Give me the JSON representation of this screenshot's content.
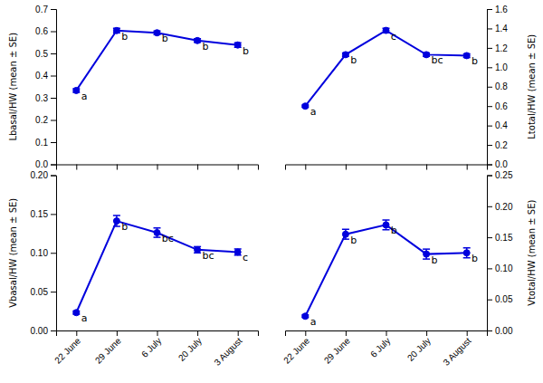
{
  "chart_data": [
    {
      "type": "line",
      "ylabel": "Lbasal/HW (mean ± SE)",
      "categories": [
        "22 June",
        "29 June",
        "6 July",
        "20 July",
        "3 August"
      ],
      "values": [
        0.333,
        0.603,
        0.593,
        0.558,
        0.538
      ],
      "errors": [
        0.008,
        0.01,
        0.008,
        0.008,
        0.01
      ],
      "letters": [
        "a",
        "b",
        "b",
        "b",
        "b"
      ],
      "ylim": [
        0.0,
        0.7
      ],
      "yticks": [
        {
          "value": 0.0,
          "label": "0.0"
        },
        0.1,
        0.2,
        0.3,
        0.4,
        0.5,
        0.6,
        0.7
      ],
      "color": "#0000DD",
      "marker": "circle",
      "grid": false,
      "tick_labels": "y"
    },
    {
      "type": "line",
      "ylabel": "Ltotal/HW (mean ± SE)",
      "categories": [
        "22 June",
        "29 June",
        "6 July",
        "20 July",
        "3 August"
      ],
      "values": [
        0.6,
        1.13,
        1.38,
        1.13,
        1.12
      ],
      "errors": [
        0.012,
        0.018,
        0.022,
        0.018,
        0.018
      ],
      "letters": [
        "a",
        "b",
        "c",
        "bc",
        "b"
      ],
      "ylim": [
        0.0,
        1.6
      ],
      "yticks": [
        {
          "value": 0.0,
          "label": "0.0"
        },
        0.2,
        0.4,
        0.6,
        0.8,
        {
          "value": 1.0,
          "label": "1.0"
        },
        1.2,
        1.4,
        1.6
      ],
      "color": "#0000DD",
      "marker": "circle",
      "grid": false,
      "tick_labels": "y"
    },
    {
      "type": "line",
      "ylabel": "Vbasal/HW (mean ± SE)",
      "categories": [
        "22 June",
        "29 June",
        "6 July",
        "20 July",
        "3 August"
      ],
      "values": [
        0.023,
        0.141,
        0.126,
        0.104,
        0.101
      ],
      "errors": [
        0.002,
        0.007,
        0.006,
        0.004,
        0.004
      ],
      "letters": [
        "a",
        "b",
        "bc",
        "bc",
        "c"
      ],
      "ylim": [
        0.0,
        0.2
      ],
      "yticks": [
        {
          "value": 0.0,
          "label": "0.00"
        },
        0.05,
        {
          "value": 0.1,
          "label": "0.10"
        },
        0.15,
        {
          "value": 0.2,
          "label": "0.20"
        }
      ],
      "color": "#0000DD",
      "marker": "circle",
      "grid": false
    },
    {
      "type": "line",
      "ylabel": "Vtotal/HW (mean ± SE)",
      "categories": [
        "22 June",
        "29 June",
        "6 July",
        "20 July",
        "3 August"
      ],
      "values": [
        0.023,
        0.155,
        0.17,
        0.123,
        0.125
      ],
      "errors": [
        0.002,
        0.008,
        0.008,
        0.008,
        0.008
      ],
      "letters": [
        "a",
        "b",
        "b",
        "b",
        "b"
      ],
      "ylim": [
        0.0,
        0.25
      ],
      "yticks": [
        {
          "value": 0.0,
          "label": "0.00"
        },
        0.05,
        {
          "value": 0.1,
          "label": "0.10"
        },
        0.15,
        {
          "value": 0.2,
          "label": "0.20"
        },
        0.25
      ],
      "color": "#0000DD",
      "marker": "circle",
      "grid": false
    }
  ]
}
